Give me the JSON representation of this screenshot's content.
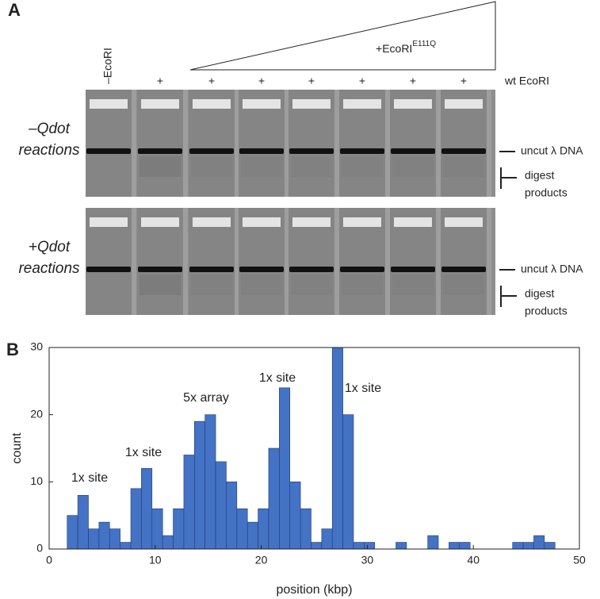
{
  "figure": {
    "panel_a_label": "A",
    "panel_b_label": "B",
    "mutant_label": "+EcoRI",
    "mutant_superscript": "E111Q",
    "control_lane_label": "–EcoRI",
    "wt_label": "wt EcoRI",
    "lane_marks": [
      "+",
      "+",
      "+",
      "+",
      "+",
      "+",
      "+"
    ],
    "gels": [
      {
        "condition": [
          "–Qdot",
          "reactions"
        ],
        "band_label": "uncut λ DNA",
        "products_label": [
          "digest",
          "products"
        ]
      },
      {
        "condition": [
          "+Qdot",
          "reactions"
        ],
        "band_label": "uncut λ DNA",
        "products_label": [
          "digest",
          "products"
        ]
      }
    ]
  },
  "chart_data": {
    "type": "histogram",
    "xlabel": "position (kbp)",
    "ylabel": "count",
    "color": "#4472c4",
    "edgecolor": "#1f3d73",
    "bins": [
      1.7,
      2.7,
      3.7,
      4.7,
      5.7,
      6.7,
      7.7,
      8.7,
      9.7,
      10.7,
      11.7,
      12.7,
      13.7,
      14.7,
      15.7,
      16.7,
      17.7,
      18.7,
      19.7,
      20.7,
      21.7,
      22.7,
      23.7,
      24.7,
      25.7,
      26.7,
      27.7,
      28.7,
      29.7,
      30.7,
      31.7,
      32.7,
      33.7,
      34.7,
      35.7,
      36.7,
      37.7,
      38.7,
      39.7,
      40.7,
      41.7,
      42.7,
      43.7,
      44.7,
      45.7,
      46.7,
      47.7
    ],
    "values": [
      5,
      8,
      3,
      4,
      3,
      1,
      9,
      12,
      6,
      2,
      6,
      14,
      19,
      20,
      13,
      10,
      6,
      4,
      6,
      15,
      24,
      10,
      6,
      1,
      3,
      30,
      20,
      1,
      1,
      0,
      0,
      1,
      0,
      0,
      2,
      0,
      1,
      1,
      0,
      0,
      0,
      0,
      1,
      1,
      2,
      1
    ],
    "xlim": [
      0,
      50
    ],
    "ylim": [
      0,
      30
    ],
    "xticks": [
      0,
      10,
      20,
      30,
      40,
      50
    ],
    "yticks": [
      0,
      10,
      20,
      30
    ],
    "annotations": [
      "1x site",
      "1x site",
      "5x array",
      "1x site",
      "1x site"
    ]
  }
}
